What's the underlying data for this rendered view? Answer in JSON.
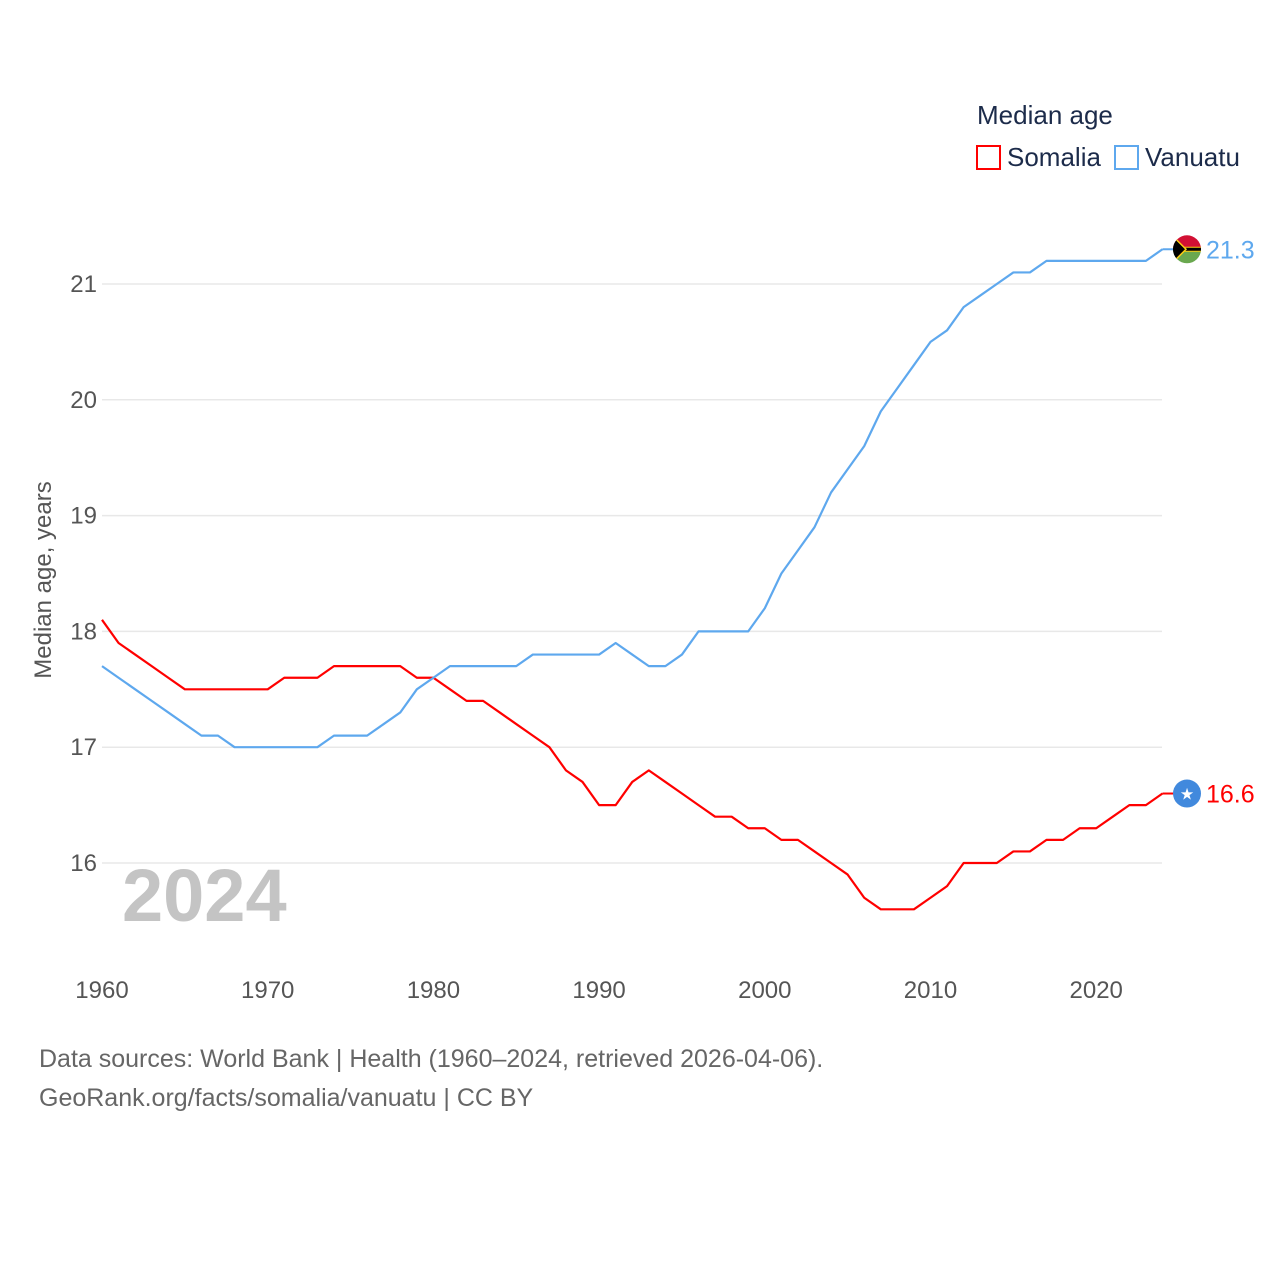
{
  "chart_data": {
    "type": "line",
    "title": "",
    "xlabel": "",
    "ylabel": "Median age, years",
    "xlim": [
      1960,
      2024
    ],
    "ylim": [
      15.3,
      21.6
    ],
    "grid": true,
    "x_ticks": [
      "1960",
      "1970",
      "1980",
      "1990",
      "2000",
      "2010",
      "2020"
    ],
    "y_ticks": [
      "16",
      "17",
      "18",
      "19",
      "20",
      "21"
    ],
    "legend": {
      "title": "Median age",
      "placement": "top-right"
    },
    "year_watermark": "2024",
    "x": [
      1960,
      1961,
      1962,
      1963,
      1964,
      1965,
      1966,
      1967,
      1968,
      1969,
      1970,
      1971,
      1972,
      1973,
      1974,
      1975,
      1976,
      1977,
      1978,
      1979,
      1980,
      1981,
      1982,
      1983,
      1984,
      1985,
      1986,
      1987,
      1988,
      1989,
      1990,
      1991,
      1992,
      1993,
      1994,
      1995,
      1996,
      1997,
      1998,
      1999,
      2000,
      2001,
      2002,
      2003,
      2004,
      2005,
      2006,
      2007,
      2008,
      2009,
      2010,
      2011,
      2012,
      2013,
      2014,
      2015,
      2016,
      2017,
      2018,
      2019,
      2020,
      2021,
      2022,
      2023,
      2024
    ],
    "series": [
      {
        "name": "Somalia",
        "color": "#ff0000",
        "end_label": "16.6",
        "values": [
          18.1,
          17.9,
          17.8,
          17.7,
          17.6,
          17.5,
          17.5,
          17.5,
          17.5,
          17.5,
          17.5,
          17.6,
          17.6,
          17.6,
          17.7,
          17.7,
          17.7,
          17.7,
          17.7,
          17.6,
          17.6,
          17.5,
          17.4,
          17.4,
          17.3,
          17.2,
          17.1,
          17.0,
          16.8,
          16.7,
          16.5,
          16.5,
          16.7,
          16.8,
          16.7,
          16.6,
          16.5,
          16.4,
          16.4,
          16.3,
          16.3,
          16.2,
          16.2,
          16.1,
          16.0,
          15.9,
          15.7,
          15.6,
          15.6,
          15.6,
          15.7,
          15.8,
          16.0,
          16.0,
          16.0,
          16.1,
          16.1,
          16.2,
          16.2,
          16.3,
          16.3,
          16.4,
          16.5,
          16.5,
          16.6
        ]
      },
      {
        "name": "Vanuatu",
        "color": "#5ea8ee",
        "end_label": "21.3",
        "values": [
          17.7,
          17.6,
          17.5,
          17.4,
          17.3,
          17.2,
          17.1,
          17.1,
          17.0,
          17.0,
          17.0,
          17.0,
          17.0,
          17.0,
          17.1,
          17.1,
          17.1,
          17.2,
          17.3,
          17.5,
          17.6,
          17.7,
          17.7,
          17.7,
          17.7,
          17.7,
          17.8,
          17.8,
          17.8,
          17.8,
          17.8,
          17.9,
          17.8,
          17.7,
          17.7,
          17.8,
          18.0,
          18.0,
          18.0,
          18.0,
          18.2,
          18.5,
          18.7,
          18.9,
          19.2,
          19.4,
          19.6,
          19.9,
          20.1,
          20.3,
          20.5,
          20.6,
          20.8,
          20.9,
          21.0,
          21.1,
          21.1,
          21.2,
          21.2,
          21.2,
          21.2,
          21.2,
          21.2,
          21.2,
          21.3
        ]
      }
    ]
  },
  "footer": {
    "line1": "Data sources: World Bank | Health (1960–2024, retrieved 2026-04-06).",
    "line2": "GeoRank.org/facts/somalia/vanuatu | CC BY"
  }
}
